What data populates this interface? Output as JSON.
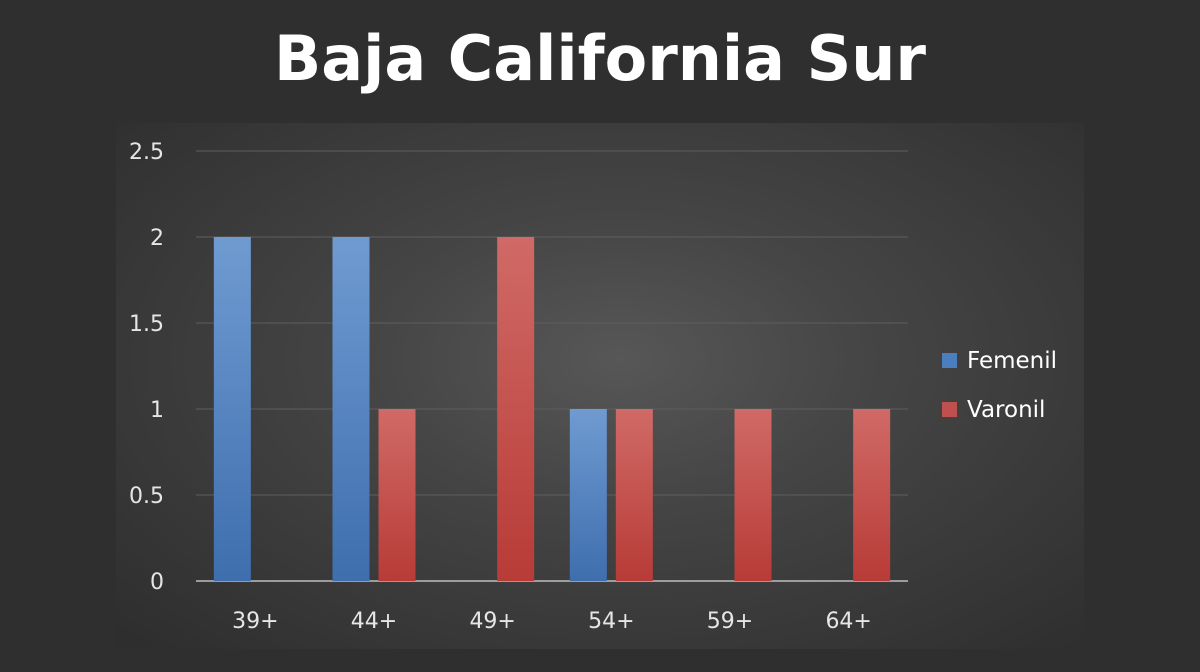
{
  "title": "Baja California Sur",
  "chart_data": {
    "type": "bar",
    "title": "Baja California Sur",
    "categories": [
      "39+",
      "44+",
      "49+",
      "54+",
      "59+",
      "64+"
    ],
    "series": [
      {
        "name": "Femenil",
        "color": "#4a7ebf",
        "values": [
          2,
          2,
          0,
          1,
          0,
          0
        ]
      },
      {
        "name": "Varonil",
        "color": "#c0504d",
        "values": [
          0,
          1,
          2,
          1,
          1,
          1
        ]
      }
    ],
    "y_ticks": [
      "0",
      "0.5",
      "1",
      "1.5",
      "2",
      "2.5"
    ],
    "ylim": [
      0,
      2.5
    ],
    "xlabel": "",
    "ylabel": "",
    "grid": true,
    "legend_position": "right"
  }
}
